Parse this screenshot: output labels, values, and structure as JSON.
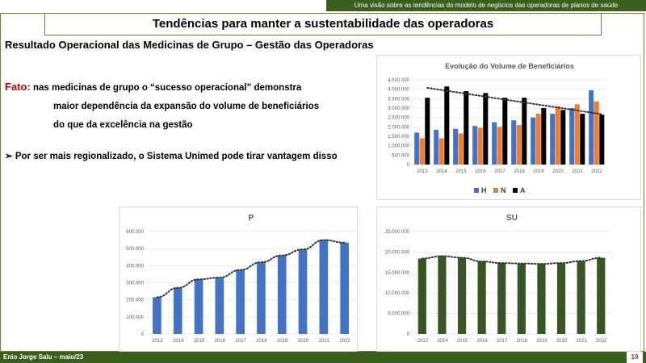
{
  "header": {
    "topbar_text": "Uma visão sobre as tendências  do modelo de negócios das operadoras de planos de saúde",
    "title": "Tendências para manter a sustentabilidade das operadoras"
  },
  "content": {
    "subtitle": "Resultado Operacional das Medicinas de Grupo – Gestão das Operadoras",
    "fact_label": "Fato:",
    "fact_line1": " nas medicinas  de grupo o “sucesso operacional”  demonstra",
    "fact_line2": "maior dependência da expansão do volume de beneficiários",
    "fact_line3": "do que da excelência na gestão",
    "bullet_marker": "➢",
    "bullet_text": "Por ser mais regionalizado, o Sistema Unimed pode tirar vantagem disso"
  },
  "footer": {
    "author": "Enio  Jorge Salu – maio/23",
    "page_number": "19"
  },
  "chart_data": [
    {
      "type": "bar",
      "title": "Evolução do Volume de Beneficiários",
      "categories": [
        "2013",
        "2014",
        "2015",
        "2016",
        "2017",
        "2018",
        "2019",
        "2020",
        "2021",
        "2022"
      ],
      "ylim": [
        0,
        4500000
      ],
      "yticks": [
        "0",
        "500.000",
        "1.000.000",
        "1.500.000",
        "2.000.000",
        "2.500.000",
        "3.000.000",
        "3.500.000",
        "4.000.000",
        "4.500.000"
      ],
      "legend": "bottom",
      "trendline": "A",
      "series": [
        {
          "name": "H",
          "color": "#4472c4",
          "values": [
            1700000,
            1850000,
            1900000,
            2050000,
            2250000,
            2350000,
            2500000,
            2700000,
            3000000,
            3950000
          ]
        },
        {
          "name": "N",
          "color": "#ed7d31",
          "values": [
            1400000,
            1400000,
            1650000,
            1950000,
            2000000,
            2100000,
            2700000,
            3100000,
            3200000,
            3350000
          ]
        },
        {
          "name": "A",
          "color": "#000000",
          "values": [
            3550000,
            4150000,
            3900000,
            3800000,
            3550000,
            3550000,
            3000000,
            2900000,
            2700000,
            2650000
          ]
        }
      ]
    },
    {
      "type": "bar",
      "title": "P",
      "categories": [
        "2013",
        "2014",
        "2015",
        "2016",
        "2017",
        "2018",
        "2019",
        "2020",
        "2021",
        "2022"
      ],
      "ylim": [
        0,
        600000
      ],
      "yticks": [
        "0",
        "100.000",
        "200.000",
        "300.000",
        "400.000",
        "500.000",
        "600.000"
      ],
      "series": [
        {
          "name": "",
          "color": "#4472c4",
          "values": [
            215000,
            270000,
            320000,
            330000,
            375000,
            420000,
            460000,
            495000,
            550000,
            535000
          ]
        }
      ]
    },
    {
      "type": "bar",
      "title": "SU",
      "categories": [
        "2013",
        "2014",
        "2015",
        "2016",
        "2017",
        "2018",
        "2019",
        "2020",
        "2021",
        "2022"
      ],
      "ylim": [
        0,
        25000000
      ],
      "yticks": [
        "0",
        "5.000.000",
        "10.000.000",
        "15.000.000",
        "20.000.000",
        "25.000.000"
      ],
      "series": [
        {
          "name": "",
          "color": "#375623",
          "values": [
            18400000,
            19000000,
            18600000,
            17700000,
            17300000,
            17200000,
            17100000,
            17300000,
            17800000,
            18600000
          ]
        }
      ]
    }
  ]
}
